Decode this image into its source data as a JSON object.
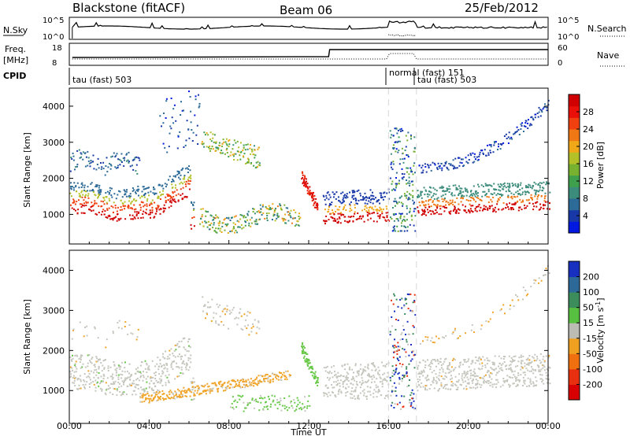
{
  "header": {
    "station": "Blackstone (fitACF)",
    "beam": "Beam 06",
    "date": "25/Feb/2012"
  },
  "nsky_panel": {
    "left_label": "N.Sky",
    "right_label": "N.Search",
    "ticks_left": [
      "10^5",
      "10^0"
    ],
    "ticks_right": [
      "10^5",
      "10^0"
    ]
  },
  "freq_panel": {
    "left_label_1": "Freq.",
    "left_label_2": "[MHz]",
    "right_label": "Nave",
    "ticks_left": [
      "18",
      "8"
    ],
    "ticks_right": [
      "60",
      "0"
    ]
  },
  "cpid_panel": {
    "label": "CPID",
    "modes": [
      "tau (fast) 503",
      "normal (fast) 151",
      "tau (fast) 503"
    ]
  },
  "chart_data": [
    {
      "type": "heatmap",
      "title": "",
      "ylabel": "Slant Range [km]",
      "yticks": [
        "1000",
        "2000",
        "3000",
        "4000"
      ],
      "ylim": [
        180,
        4500
      ],
      "xlim": [
        0,
        24
      ],
      "colorbar": {
        "label": "Power [dB]",
        "ticks": [
          "4",
          "8",
          "12",
          "16",
          "20",
          "24",
          "28"
        ],
        "colors": [
          "#0018e0",
          "#1838a8",
          "#2c6a98",
          "#3c8c7c",
          "#3ea04c",
          "#78b030",
          "#b4c028",
          "#f0a818",
          "#f07814",
          "#f04010",
          "#e81008",
          "#d00000"
        ]
      }
    },
    {
      "type": "heatmap",
      "title": "",
      "ylabel": "Slant Range [km]",
      "xlabel": "Time UT",
      "xticks": [
        "00:00",
        "04:00",
        "08:00",
        "12:00",
        "16:00",
        "20:00",
        "00:00"
      ],
      "yticks": [
        "1000",
        "2000",
        "3000",
        "4000"
      ],
      "ylim": [
        180,
        4500
      ],
      "xlim": [
        0,
        24
      ],
      "colorbar": {
        "label": "Velocity [m s^-1]",
        "ticks": [
          "200",
          "100",
          "50",
          "15",
          "-15",
          "-50",
          "-100",
          "-200"
        ],
        "colors": [
          "#1830c0",
          "#2c6898",
          "#3c8c5c",
          "#58c040",
          "#bcbcb4",
          "#f0a020",
          "#f07010",
          "#e83010",
          "#d80000"
        ]
      }
    }
  ]
}
